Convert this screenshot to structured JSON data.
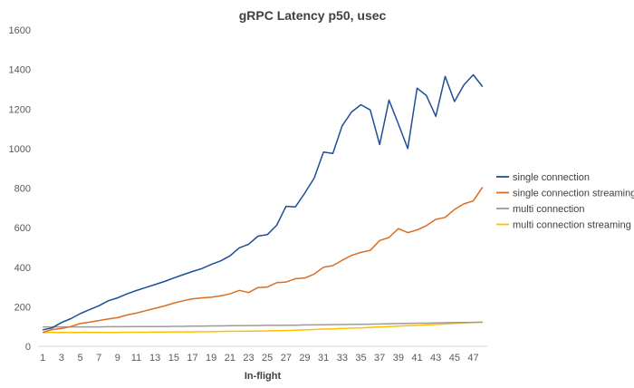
{
  "chart_data": {
    "type": "line",
    "title": "gRPC Latency p50, usec",
    "xlabel": "In-flight",
    "ylabel": "",
    "ylim": [
      0,
      1600
    ],
    "yticks": [
      0,
      200,
      400,
      600,
      800,
      1000,
      1200,
      1400,
      1600
    ],
    "xticks": [
      1,
      3,
      5,
      7,
      9,
      11,
      13,
      15,
      17,
      19,
      21,
      23,
      25,
      27,
      29,
      31,
      33,
      35,
      37,
      39,
      41,
      43,
      45,
      47
    ],
    "grid": false,
    "legend_position": "right",
    "x": [
      1,
      2,
      3,
      4,
      5,
      6,
      7,
      8,
      9,
      10,
      11,
      12,
      13,
      14,
      15,
      16,
      17,
      18,
      19,
      20,
      21,
      22,
      23,
      24,
      25,
      26,
      27,
      28,
      29,
      30,
      31,
      32,
      33,
      34,
      35,
      36,
      37,
      38,
      39,
      40,
      41,
      42,
      43,
      44,
      45,
      46,
      47,
      48
    ],
    "series": [
      {
        "name": "single connection",
        "color": "#1f4e96",
        "values": [
          83,
          93,
          120,
          140,
          165,
          185,
          205,
          230,
          245,
          265,
          282,
          297,
          312,
          328,
          345,
          362,
          378,
          393,
          414,
          432,
          457,
          498,
          516,
          557,
          565,
          612,
          708,
          705,
          775,
          850,
          982,
          975,
          1115,
          1185,
          1222,
          1195,
          1020,
          1245,
          1125,
          1000,
          1305,
          1268,
          1163,
          1365,
          1238,
          1322,
          1373,
          1313
        ]
      },
      {
        "name": "single connection streaming",
        "color": "#d86f22",
        "values": [
          70,
          85,
          90,
          100,
          115,
          122,
          130,
          138,
          145,
          158,
          168,
          180,
          192,
          204,
          218,
          230,
          240,
          245,
          248,
          255,
          265,
          283,
          272,
          297,
          300,
          322,
          325,
          342,
          345,
          365,
          400,
          408,
          435,
          460,
          475,
          485,
          535,
          550,
          595,
          575,
          588,
          610,
          642,
          652,
          692,
          720,
          735,
          805
        ]
      },
      {
        "name": "multi connection",
        "color": "#9b9b9b",
        "values": [
          98,
          98,
          98,
          98,
          98,
          98,
          98,
          99,
          99,
          99,
          100,
          100,
          100,
          100,
          101,
          101,
          102,
          102,
          103,
          103,
          104,
          104,
          105,
          105,
          106,
          106,
          107,
          107,
          108,
          108,
          109,
          110,
          110,
          111,
          111,
          112,
          113,
          114,
          115,
          116,
          117,
          117,
          118,
          119,
          120,
          120,
          121,
          122
        ]
      },
      {
        "name": "multi connection streaming",
        "color": "#ffc000",
        "values": [
          70,
          70,
          70,
          70,
          70,
          70,
          70,
          70,
          70,
          71,
          71,
          71,
          72,
          72,
          73,
          73,
          73,
          74,
          74,
          75,
          76,
          76,
          77,
          77,
          78,
          79,
          80,
          81,
          83,
          85,
          87,
          88,
          90,
          92,
          93,
          96,
          98,
          100,
          102,
          104,
          106,
          108,
          110,
          113,
          116,
          118,
          120,
          122
        ]
      }
    ]
  }
}
